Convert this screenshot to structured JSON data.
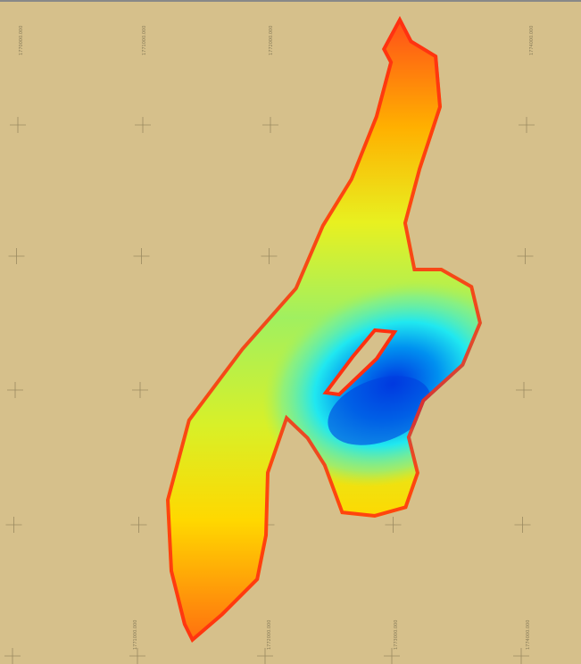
{
  "map": {
    "top_labels": [
      "1770000.000",
      "1771000.000",
      "1772000.000",
      "1774000.000"
    ],
    "bottom_labels": [
      "1771000.000",
      "1772000.000",
      "1773000.000",
      "1774000.000"
    ]
  }
}
